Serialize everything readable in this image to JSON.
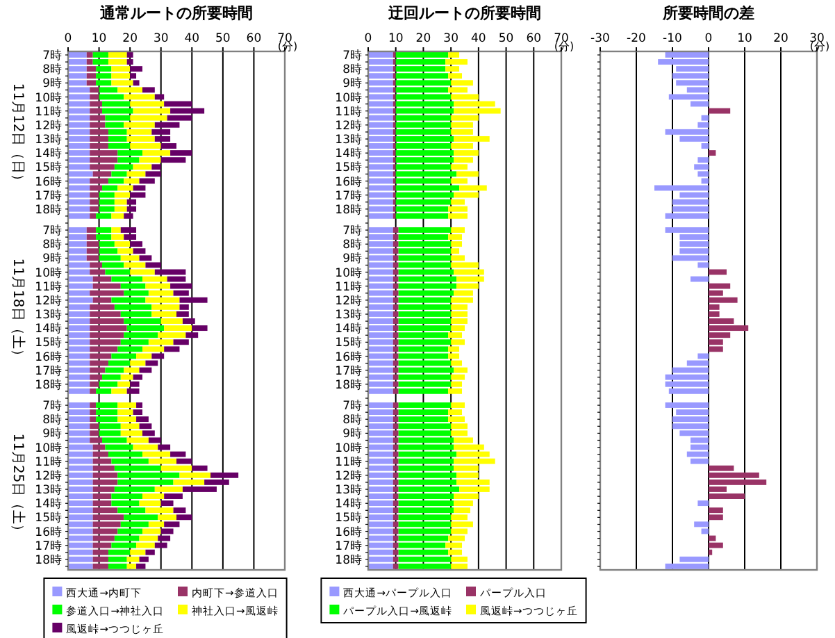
{
  "chart_data": [
    {
      "type": "bar",
      "orientation": "horizontal",
      "stacked": true,
      "title": "通常ルートの所要時間",
      "xlabel": "(分)",
      "xlim": [
        0,
        70
      ],
      "xticks": [
        0,
        10,
        20,
        30,
        40,
        50,
        60,
        70
      ],
      "grid": "x",
      "legend": "bottom",
      "annotations": [
        "11月12日（日）",
        "11月18日（土）",
        "11月25日（土）"
      ],
      "categories": [
        "7時",
        null,
        "8時",
        null,
        "9時",
        null,
        "10時",
        null,
        "11時",
        null,
        "12時",
        null,
        "13時",
        null,
        "14時",
        null,
        "15時",
        null,
        "16時",
        null,
        "17時",
        null,
        "18時",
        null,
        null,
        "7時",
        null,
        "8時",
        null,
        "9時",
        null,
        "10時",
        null,
        "11時",
        null,
        "12時",
        null,
        "13時",
        null,
        "14時",
        null,
        "15時",
        null,
        "16時",
        null,
        "17時",
        null,
        "18時",
        null,
        null,
        "7時",
        null,
        "8時",
        null,
        "9時",
        null,
        "10時",
        null,
        "11時",
        null,
        "12時",
        null,
        "13時",
        null,
        "14時",
        null,
        "15時",
        null,
        "16時",
        null,
        "17時",
        null,
        "18時",
        null
      ],
      "series": [
        {
          "name": "西大通→内町下",
          "color": "#9999ff",
          "values": [
            6,
            6,
            6,
            6,
            6,
            7,
            7,
            7,
            7,
            7,
            7,
            7,
            7,
            7,
            7,
            7,
            7,
            8,
            7,
            7,
            7,
            7,
            7,
            7,
            null,
            6,
            6,
            6,
            6,
            6,
            7,
            7,
            8,
            8,
            7,
            8,
            7,
            7,
            7,
            7,
            7,
            7,
            7,
            7,
            7,
            7,
            7,
            7,
            7,
            null,
            7,
            7,
            7,
            7,
            7,
            7,
            8,
            8,
            8,
            8,
            8,
            8,
            8,
            8,
            8,
            8,
            8,
            8,
            8,
            8,
            8,
            8,
            8,
            8
          ]
        },
        {
          "name": "内町下→参道入口",
          "color": "#993366",
          "values": [
            2,
            2,
            3,
            3,
            3,
            3,
            3,
            4,
            4,
            5,
            5,
            6,
            6,
            6,
            9,
            9,
            8,
            6,
            6,
            4,
            3,
            3,
            3,
            2,
            null,
            3,
            3,
            4,
            4,
            4,
            4,
            5,
            6,
            9,
            11,
            6,
            8,
            10,
            11,
            12,
            11,
            10,
            9,
            7,
            6,
            5,
            4,
            3,
            2,
            null,
            2,
            2,
            2,
            3,
            3,
            4,
            4,
            5,
            6,
            7,
            8,
            8,
            7,
            6,
            6,
            8,
            10,
            9,
            8,
            7,
            6,
            5,
            5,
            5
          ]
        },
        {
          "name": "参道入口→神社入口",
          "color": "#00ff00",
          "values": [
            5,
            5,
            5,
            5,
            5,
            6,
            8,
            9,
            10,
            8,
            6,
            6,
            6,
            7,
            8,
            7,
            6,
            5,
            5,
            5,
            5,
            5,
            5,
            5,
            null,
            5,
            5,
            5,
            6,
            7,
            7,
            8,
            10,
            8,
            8,
            11,
            12,
            10,
            12,
            12,
            11,
            9,
            8,
            8,
            7,
            6,
            6,
            6,
            5,
            null,
            7,
            7,
            7,
            7,
            7,
            8,
            9,
            11,
            12,
            15,
            20,
            18,
            13,
            10,
            9,
            9,
            11,
            9,
            8,
            8,
            8,
            7,
            6,
            6
          ]
        },
        {
          "name": "神社入口→風返峠",
          "color": "#ffff00",
          "values": [
            6,
            6,
            6,
            6,
            7,
            8,
            10,
            11,
            12,
            12,
            10,
            8,
            9,
            10,
            9,
            7,
            6,
            6,
            5,
            5,
            5,
            4,
            4,
            4,
            null,
            3,
            4,
            5,
            5,
            6,
            7,
            8,
            8,
            8,
            8,
            11,
            9,
            8,
            7,
            9,
            9,
            8,
            7,
            5,
            5,
            5,
            4,
            4,
            5,
            null,
            6,
            5,
            6,
            6,
            7,
            7,
            8,
            9,
            9,
            10,
            10,
            10,
            9,
            7,
            7,
            9,
            6,
            5,
            6,
            6,
            6,
            5,
            4,
            3
          ]
        },
        {
          "name": "風返峠→つつじヶ丘",
          "color": "#660066",
          "values": [
            2,
            2,
            4,
            2,
            2,
            4,
            3,
            9,
            11,
            8,
            8,
            6,
            5,
            5,
            7,
            8,
            3,
            5,
            5,
            4,
            5,
            3,
            3,
            3,
            null,
            5,
            4,
            4,
            4,
            4,
            5,
            10,
            6,
            7,
            5,
            9,
            3,
            4,
            4,
            5,
            4,
            5,
            5,
            4,
            4,
            4,
            3,
            3,
            4,
            null,
            2,
            3,
            4,
            4,
            4,
            4,
            4,
            5,
            5,
            5,
            9,
            8,
            11,
            6,
            4,
            4,
            5,
            5,
            4,
            4,
            4,
            3,
            3,
            3
          ]
        }
      ]
    },
    {
      "type": "bar",
      "orientation": "horizontal",
      "stacked": true,
      "title": "迂回ルートの所要時間",
      "xlabel": "(分)",
      "xlim": [
        0,
        70
      ],
      "xticks": [
        0,
        10,
        20,
        30,
        40,
        50,
        60,
        70
      ],
      "grid": "x",
      "legend": "bottom",
      "categories": [
        "7時",
        null,
        "8時",
        null,
        "9時",
        null,
        "10時",
        null,
        "11時",
        null,
        "12時",
        null,
        "13時",
        null,
        "14時",
        null,
        "15時",
        null,
        "16時",
        null,
        "17時",
        null,
        "18時",
        null,
        null,
        "7時",
        null,
        "8時",
        null,
        "9時",
        null,
        "10時",
        null,
        "11時",
        null,
        "12時",
        null,
        "13時",
        null,
        "14時",
        null,
        "15時",
        null,
        "16時",
        null,
        "17時",
        null,
        "18時",
        null,
        null,
        "7時",
        null,
        "8時",
        null,
        "9時",
        null,
        "10時",
        null,
        "11時",
        null,
        "12時",
        null,
        "13時",
        null,
        "14時",
        null,
        "15時",
        null,
        "16時",
        null,
        "17時",
        null,
        "18時",
        null
      ],
      "series": [
        {
          "name": "西大通→パープル入口",
          "color": "#9999ff",
          "values": [
            9,
            9,
            9,
            9,
            9,
            9,
            9,
            9,
            9,
            9,
            9,
            9,
            9,
            9,
            9,
            9,
            9,
            9,
            9,
            9,
            9,
            9,
            9,
            9,
            null,
            9,
            9,
            9,
            9,
            9,
            9,
            9,
            9,
            9,
            9,
            9,
            9,
            9,
            9,
            9,
            9,
            9,
            9,
            9,
            9,
            9,
            9,
            9,
            9,
            null,
            9,
            9,
            9,
            9,
            9,
            9,
            9,
            9,
            9,
            9,
            9,
            9,
            9,
            9,
            9,
            9,
            9,
            9,
            9,
            9,
            9,
            9,
            9,
            9
          ]
        },
        {
          "name": "パープル入口",
          "color": "#993366",
          "values": [
            1,
            1,
            1,
            1,
            1,
            1,
            1,
            1,
            1,
            1,
            1,
            1,
            1,
            1,
            1,
            1,
            1,
            1,
            1,
            1,
            1,
            1,
            1,
            1,
            null,
            2,
            2,
            2,
            2,
            2,
            2,
            2,
            2,
            2,
            2,
            2,
            2,
            2,
            2,
            2,
            2,
            2,
            2,
            2,
            2,
            2,
            2,
            2,
            2,
            null,
            2,
            2,
            2,
            2,
            2,
            2,
            2,
            2,
            2,
            2,
            2,
            2,
            2,
            2,
            2,
            2,
            2,
            2,
            2,
            2,
            2,
            2,
            2,
            2
          ]
        },
        {
          "name": "パープル入口→風返峠",
          "color": "#00ff00",
          "values": [
            19,
            18,
            18,
            19,
            20,
            19,
            20,
            21,
            21,
            20,
            20,
            20,
            21,
            20,
            21,
            21,
            20,
            22,
            20,
            23,
            21,
            20,
            19,
            19,
            null,
            19,
            18,
            19,
            19,
            19,
            19,
            20,
            21,
            21,
            20,
            19,
            19,
            19,
            19,
            19,
            18,
            19,
            18,
            18,
            19,
            20,
            19,
            19,
            18,
            null,
            19,
            18,
            18,
            19,
            19,
            20,
            20,
            21,
            20,
            20,
            21,
            21,
            22,
            20,
            20,
            20,
            19,
            19,
            19,
            18,
            17,
            18,
            19,
            19
          ]
        },
        {
          "name": "風返峠→つつじヶ丘",
          "color": "#ffff00",
          "values": [
            4,
            8,
            5,
            5,
            8,
            7,
            10,
            15,
            17,
            10,
            8,
            8,
            13,
            8,
            9,
            7,
            6,
            8,
            6,
            10,
            9,
            5,
            7,
            7,
            null,
            5,
            5,
            4,
            3,
            5,
            10,
            11,
            10,
            8,
            7,
            8,
            6,
            6,
            6,
            5,
            5,
            5,
            4,
            4,
            4,
            5,
            5,
            4,
            5,
            null,
            5,
            5,
            6,
            6,
            6,
            7,
            11,
            12,
            15,
            9,
            8,
            12,
            11,
            9,
            7,
            6,
            6,
            8,
            6,
            6,
            6,
            5,
            6,
            6
          ]
        }
      ]
    },
    {
      "type": "bar",
      "orientation": "horizontal",
      "title": "所要時間の差",
      "xlabel": "(分)",
      "xlim": [
        -30,
        30
      ],
      "xticks": [
        -30,
        -20,
        -10,
        0,
        10,
        20,
        30
      ],
      "grid": "x",
      "categories": [
        null,
        null,
        null,
        null,
        null,
        null,
        null,
        null,
        null,
        null,
        null,
        null,
        null,
        null,
        null,
        null,
        null,
        null,
        null,
        null,
        null,
        null,
        null,
        null,
        null,
        null,
        null,
        null,
        null,
        null,
        null,
        null,
        null,
        null,
        null,
        null,
        null,
        null,
        null,
        null,
        null,
        null,
        null,
        null,
        null,
        null,
        null,
        null,
        null,
        null,
        null,
        null,
        null,
        null,
        null,
        null,
        null,
        null,
        null,
        null,
        null,
        null,
        null,
        null,
        null,
        null,
        null,
        null,
        null,
        null,
        null,
        null,
        null,
        null
      ],
      "values": [
        -12,
        -14,
        -9,
        -10,
        -9,
        -6,
        -11,
        -5,
        6,
        -2,
        -3,
        -12,
        -8,
        -2,
        2,
        -3,
        -4,
        -3,
        -2,
        -15,
        -8,
        -10,
        -10,
        -12,
        null,
        -12,
        -8,
        -8,
        -8,
        -10,
        -3,
        5,
        -5,
        6,
        4,
        8,
        3,
        3,
        7,
        11,
        6,
        4,
        4,
        -3,
        -6,
        -10,
        -12,
        -12,
        -11,
        null,
        -12,
        -9,
        -10,
        -10,
        -8,
        -5,
        -5,
        -6,
        -5,
        7,
        14,
        16,
        5,
        10,
        -3,
        4,
        4,
        -4,
        -2,
        2,
        4,
        1,
        -8,
        -12
      ],
      "colors": [
        "#9999ff",
        "#9999ff",
        "#9999ff",
        "#9999ff",
        "#9999ff",
        "#9999ff",
        "#9999ff",
        "#9999ff",
        "#993366",
        "#9999ff",
        "#9999ff",
        "#9999ff",
        "#9999ff",
        "#9999ff",
        "#993366",
        "#9999ff",
        "#9999ff",
        "#9999ff",
        "#9999ff",
        "#9999ff",
        "#9999ff",
        "#9999ff",
        "#9999ff",
        "#9999ff",
        null,
        "#9999ff",
        "#9999ff",
        "#9999ff",
        "#9999ff",
        "#9999ff",
        "#9999ff",
        "#993366",
        "#9999ff",
        "#993366",
        "#993366",
        "#993366",
        "#993366",
        "#993366",
        "#993366",
        "#993366",
        "#993366",
        "#993366",
        "#993366",
        "#9999ff",
        "#9999ff",
        "#9999ff",
        "#9999ff",
        "#9999ff",
        "#9999ff",
        null,
        "#9999ff",
        "#9999ff",
        "#9999ff",
        "#9999ff",
        "#9999ff",
        "#9999ff",
        "#9999ff",
        "#9999ff",
        "#9999ff",
        "#993366",
        "#993366",
        "#993366",
        "#993366",
        "#993366",
        "#9999ff",
        "#993366",
        "#993366",
        "#9999ff",
        "#9999ff",
        "#993366",
        "#993366",
        "#993366",
        "#9999ff",
        "#9999ff"
      ]
    }
  ]
}
